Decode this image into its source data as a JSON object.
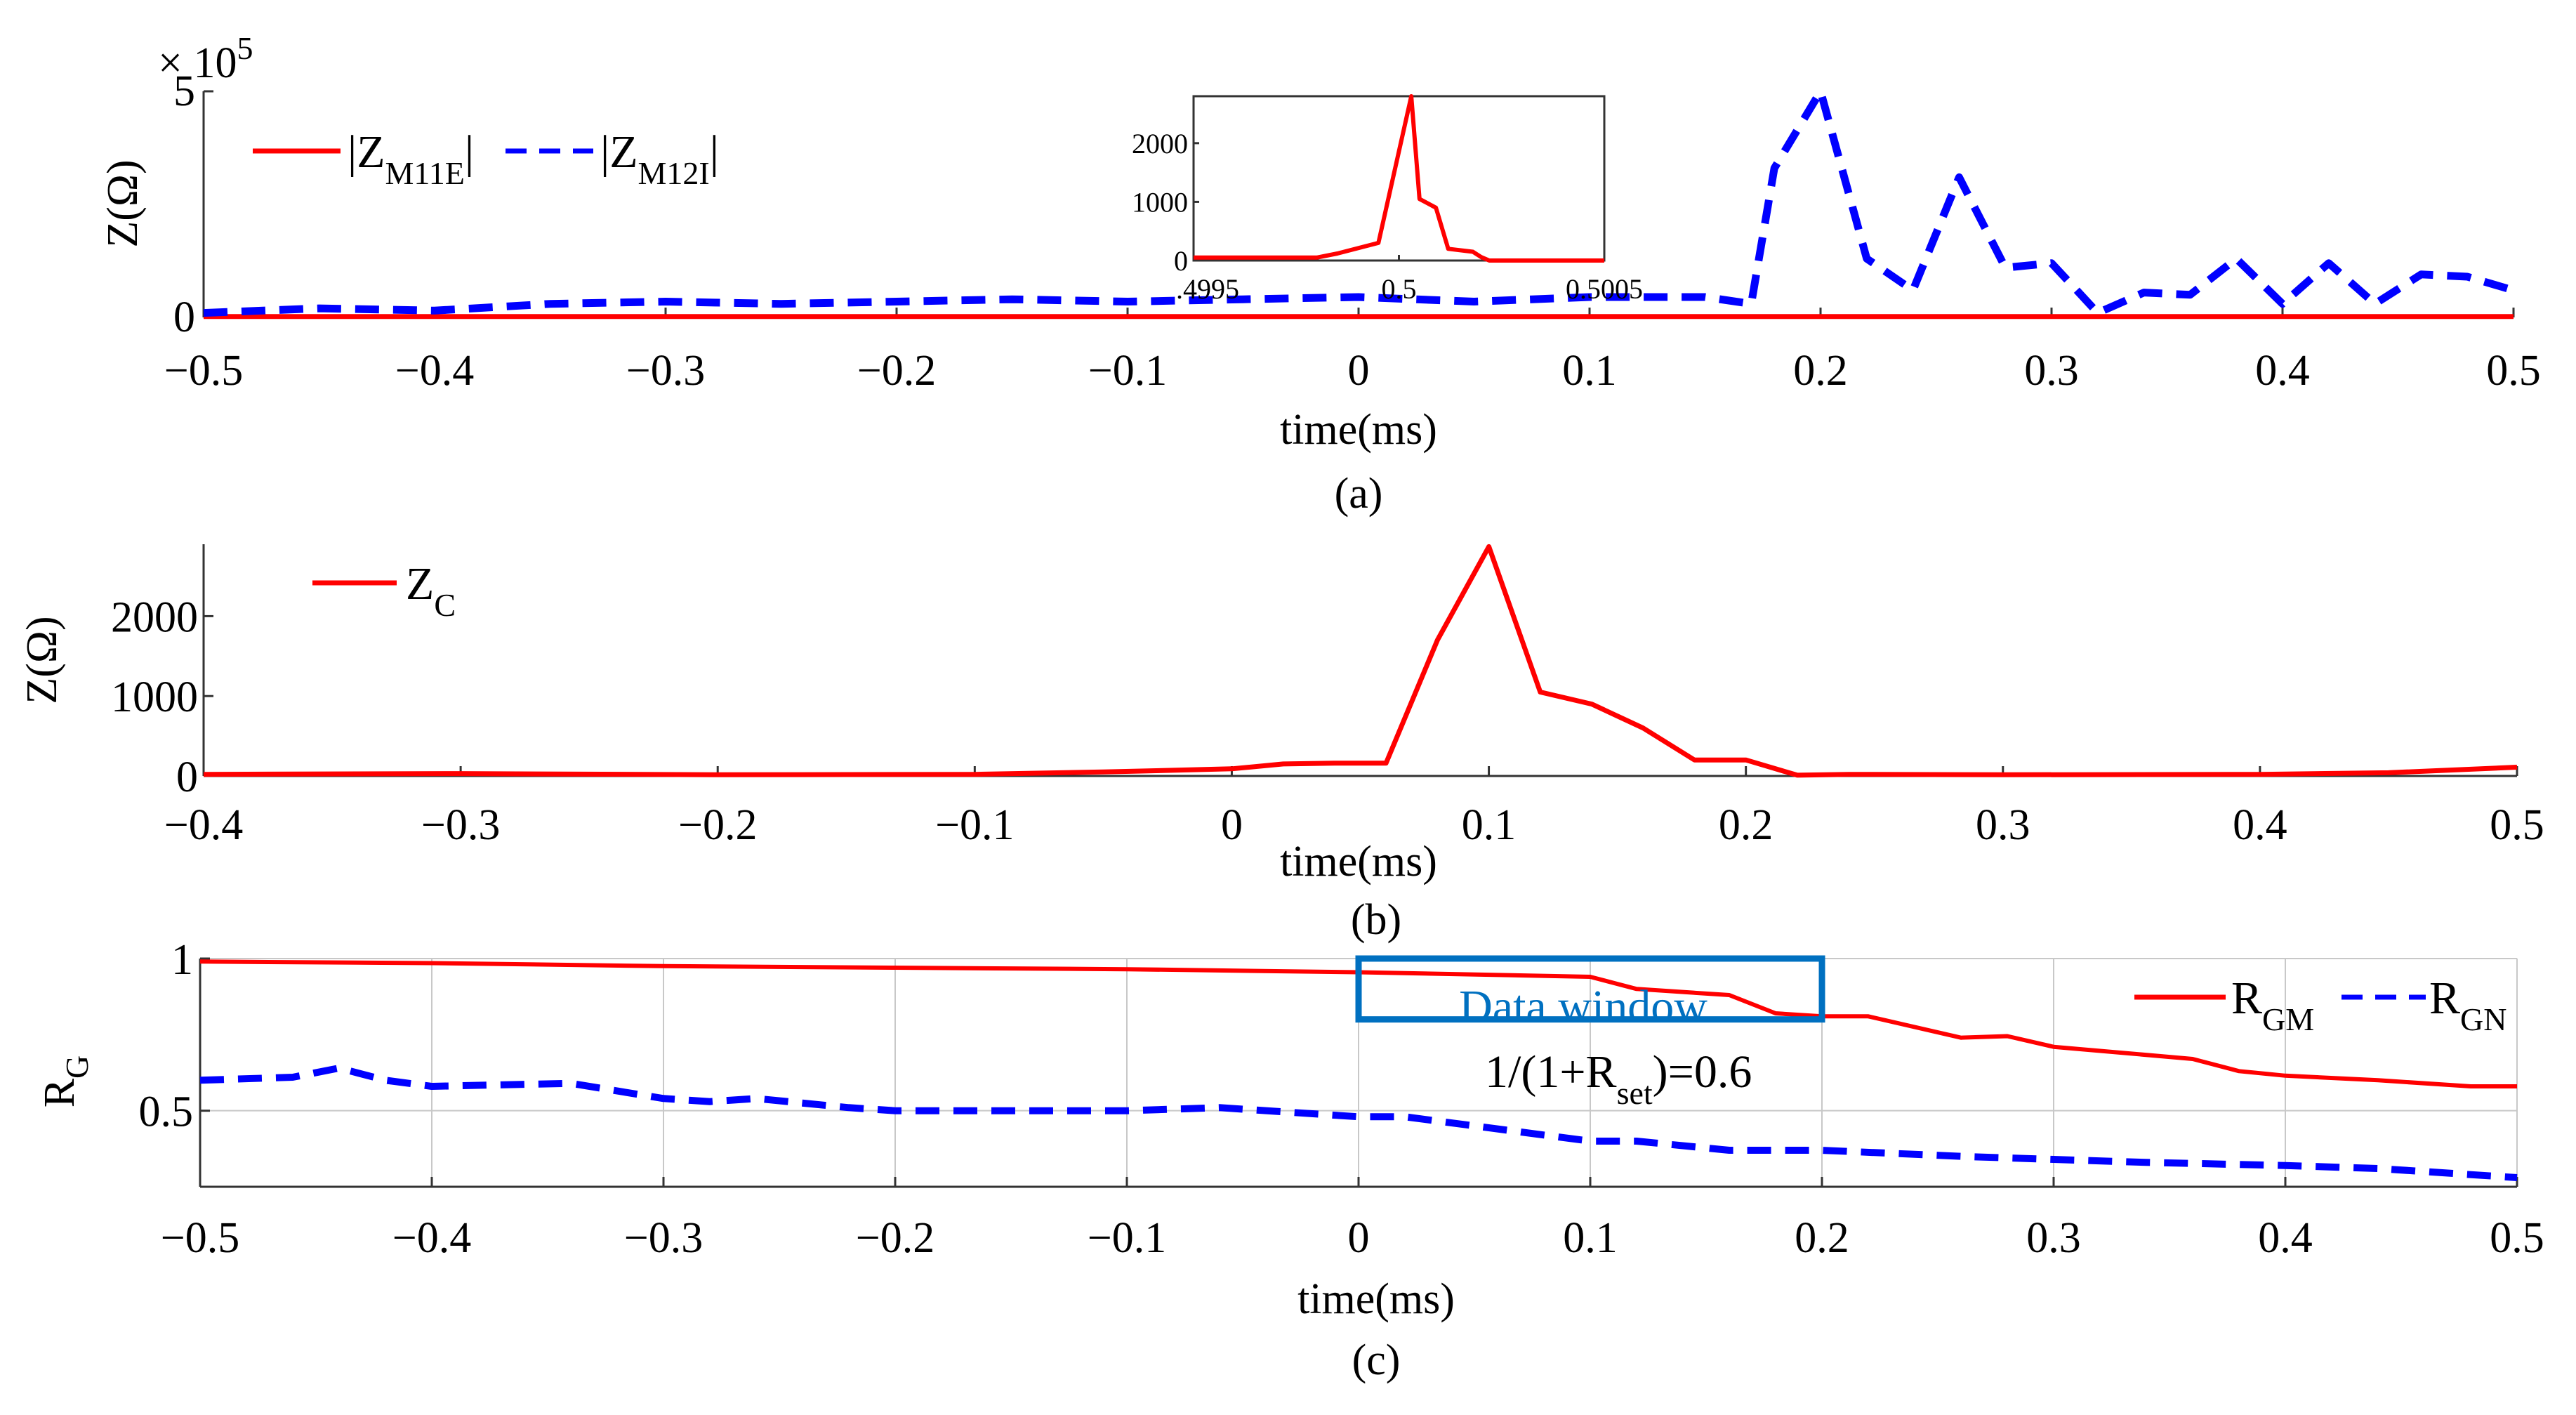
{
  "chart_data": [
    {
      "id": "a",
      "type": "line",
      "caption": "(a)",
      "xlabel": "time(ms)",
      "ylabel": "Z(Ω)",
      "y_exponent": "× 10",
      "y_exponent_power": "5",
      "xlim": [
        -0.5,
        0.5
      ],
      "ylim": [
        0,
        5
      ],
      "xticks": [
        "−0.5",
        "−0.4",
        "−0.3",
        "−0.2",
        "−0.1",
        "0",
        "0.1",
        "0.2",
        "0.3",
        "0.4",
        "0.5"
      ],
      "yticks": [
        "0",
        "5"
      ],
      "legend_position": "top-left",
      "series": [
        {
          "name": "|Z_M11E|",
          "label_main": "|Z",
          "label_sub": "M11E",
          "label_end": "|",
          "color": "#ff0000",
          "style": "solid",
          "x": [
            -0.5,
            0.5
          ],
          "y": [
            0.02,
            0.02
          ]
        },
        {
          "name": "|Z_M12I|",
          "label_main": "|Z",
          "label_sub": "M12I",
          "label_end": "|",
          "color": "#0000ff",
          "style": "dashed",
          "x": [
            -0.5,
            -0.45,
            -0.4,
            -0.35,
            -0.3,
            -0.25,
            -0.2,
            -0.15,
            -0.1,
            -0.05,
            0,
            0.05,
            0.1,
            0.15,
            0.17,
            0.18,
            0.2,
            0.22,
            0.24,
            0.26,
            0.28,
            0.3,
            0.32,
            0.34,
            0.36,
            0.38,
            0.4,
            0.42,
            0.44,
            0.46,
            0.48,
            0.5
          ],
          "y": [
            0.1,
            0.2,
            0.15,
            0.3,
            0.35,
            0.3,
            0.35,
            0.4,
            0.35,
            0.4,
            0.45,
            0.35,
            0.45,
            0.45,
            0.3,
            3.3,
            5.0,
            1.3,
            0.6,
            3.1,
            1.1,
            1.2,
            0.1,
            0.55,
            0.5,
            1.3,
            0.3,
            1.2,
            0.3,
            0.95,
            0.9,
            0.6
          ]
        }
      ],
      "inset": {
        "type": "line",
        "xlim": [
          0.4995,
          0.5005
        ],
        "ylim": [
          0,
          2800
        ],
        "xticks": [
          ".4995",
          "0.5",
          "0.5005"
        ],
        "yticks": [
          "0",
          "1000",
          "2000"
        ],
        "series": [
          {
            "name": "inset",
            "color": "#ff0000",
            "x": [
              0.4995,
              0.4998,
              0.49985,
              0.49995,
              0.50003,
              0.50005,
              0.50009,
              0.50012,
              0.50018,
              0.5002,
              0.50022,
              0.5005
            ],
            "y": [
              50,
              50,
              120,
              300,
              2800,
              1050,
              900,
              200,
              150,
              60,
              0,
              0
            ]
          }
        ]
      }
    },
    {
      "id": "b",
      "type": "line",
      "caption": "(b)",
      "xlabel": "time(ms)",
      "ylabel": "Z(Ω)",
      "xlim": [
        -0.4,
        0.5
      ],
      "ylim": [
        0,
        2900
      ],
      "xticks": [
        "−0.4",
        "−0.3",
        "−0.2",
        "−0.1",
        "0",
        "0.1",
        "0.2",
        "0.3",
        "0.4",
        "0.5"
      ],
      "xtick_values": [
        -0.4,
        -0.3,
        -0.2,
        -0.1,
        0,
        0.1,
        0.2,
        0.3,
        0.4,
        0.5
      ],
      "yticks": [
        "0",
        "1000",
        "2000"
      ],
      "ytick_values": [
        0,
        1000,
        2000
      ],
      "legend_position": "top-left",
      "series": [
        {
          "name": "Z_C",
          "label_main": "Z",
          "label_sub": "C",
          "color": "#ff0000",
          "style": "solid",
          "x": [
            -0.4,
            -0.3,
            -0.2,
            -0.1,
            -0.05,
            0,
            0.02,
            0.04,
            0.06,
            0.08,
            0.1,
            0.12,
            0.14,
            0.16,
            0.18,
            0.2,
            0.22,
            0.24,
            0.3,
            0.4,
            0.45,
            0.5
          ],
          "y": [
            20,
            30,
            15,
            20,
            50,
            90,
            150,
            160,
            160,
            1700,
            2870,
            1050,
            900,
            600,
            200,
            200,
            10,
            20,
            15,
            20,
            40,
            110
          ]
        }
      ]
    },
    {
      "id": "c",
      "type": "line",
      "caption": "(c)",
      "xlabel": "time(ms)",
      "ylabel": "R",
      "ylabel_sub": "G",
      "xlim": [
        -0.5,
        0.5
      ],
      "ylim": [
        0.25,
        1.0
      ],
      "xticks": [
        "−0.5",
        "−0.4",
        "−0.3",
        "−0.2",
        "−0.1",
        "0",
        "0.1",
        "0.2",
        "0.3",
        "0.4",
        "0.5"
      ],
      "yticks": [
        "0.5",
        "1"
      ],
      "ytick_values": [
        0.5,
        1.0
      ],
      "grid": true,
      "legend_position": "top-right",
      "annotations": {
        "box_label": "Data window",
        "box_x": [
          0,
          0.2
        ],
        "box_y": [
          0.8,
          1.0
        ],
        "box_color": "#0070c0",
        "threshold_main": "1/(1+R",
        "threshold_sub": "set",
        "threshold_end": ")=0.6"
      },
      "series": [
        {
          "name": "R_GM",
          "label_main": "R",
          "label_sub": "GM",
          "color": "#ff0000",
          "style": "solid",
          "x": [
            -0.5,
            -0.4,
            -0.3,
            -0.2,
            -0.1,
            0,
            0.1,
            0.12,
            0.16,
            0.18,
            0.2,
            0.22,
            0.26,
            0.28,
            0.3,
            0.36,
            0.38,
            0.4,
            0.44,
            0.48,
            0.5
          ],
          "y": [
            0.99,
            0.985,
            0.975,
            0.97,
            0.965,
            0.955,
            0.94,
            0.9,
            0.88,
            0.82,
            0.81,
            0.81,
            0.74,
            0.745,
            0.71,
            0.67,
            0.63,
            0.615,
            0.6,
            0.58,
            0.58
          ]
        },
        {
          "name": "R_GN",
          "label_main": "R",
          "label_sub": "GN",
          "color": "#0000ff",
          "style": "dashed",
          "x": [
            -0.5,
            -0.46,
            -0.44,
            -0.42,
            -0.4,
            -0.34,
            -0.3,
            -0.28,
            -0.26,
            -0.22,
            -0.2,
            -0.1,
            -0.06,
            0,
            0.02,
            0.1,
            0.12,
            0.16,
            0.2,
            0.26,
            0.3,
            0.34,
            0.4,
            0.44,
            0.5
          ],
          "y": [
            0.6,
            0.61,
            0.64,
            0.6,
            0.58,
            0.59,
            0.54,
            0.53,
            0.54,
            0.51,
            0.5,
            0.5,
            0.51,
            0.48,
            0.48,
            0.4,
            0.4,
            0.37,
            0.37,
            0.35,
            0.34,
            0.33,
            0.32,
            0.31,
            0.28
          ]
        }
      ]
    }
  ]
}
